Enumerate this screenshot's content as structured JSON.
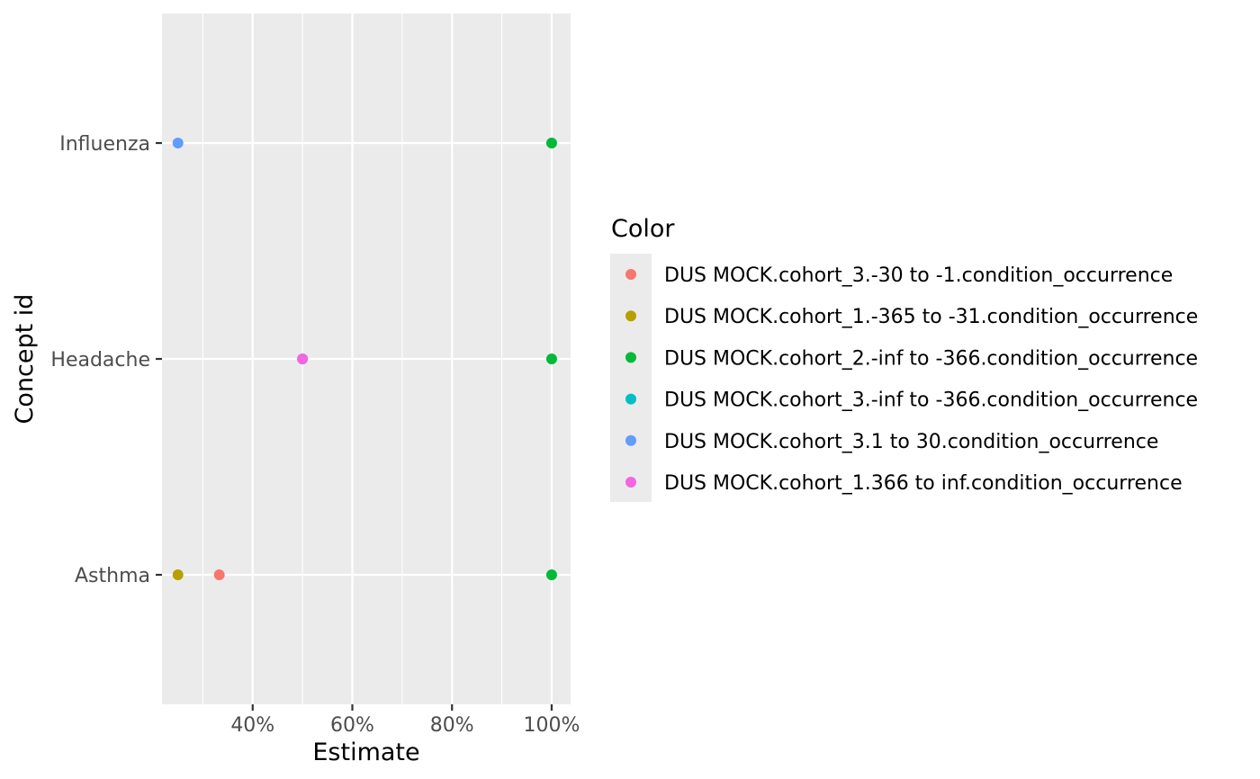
{
  "chart_data": {
    "type": "scatter",
    "xlabel": "Estimate",
    "ylabel": "Concept id",
    "xlim": [
      0.218,
      1.038
    ],
    "x_ticks": [
      0.4,
      0.6,
      0.8,
      1.0
    ],
    "x_tick_labels": [
      "40%",
      "60%",
      "80%",
      "100%"
    ],
    "x_minor_ticks": [
      0.3,
      0.5,
      0.7,
      0.9
    ],
    "categories": [
      "Asthma",
      "Headache",
      "Influenza"
    ],
    "grid": true,
    "legend": {
      "title": "Color",
      "position": "right"
    },
    "series": [
      {
        "name": "DUS MOCK.cohort_3.-30 to -1.condition_occurrence",
        "color": "#F8766D",
        "points": [
          {
            "category": "Asthma",
            "x": 0.333
          }
        ]
      },
      {
        "name": "DUS MOCK.cohort_1.-365 to -31.condition_occurrence",
        "color": "#B79F00",
        "points": [
          {
            "category": "Asthma",
            "x": 0.25
          }
        ]
      },
      {
        "name": "DUS MOCK.cohort_2.-inf to -366.condition_occurrence",
        "color": "#00BA38",
        "points": [
          {
            "category": "Asthma",
            "x": 1.0
          },
          {
            "category": "Headache",
            "x": 1.0
          },
          {
            "category": "Influenza",
            "x": 1.0
          }
        ]
      },
      {
        "name": "DUS MOCK.cohort_3.-inf to -366.condition_occurrence",
        "color": "#00BFC4",
        "points": [
          {
            "category": "Headache",
            "x": 0.5
          }
        ]
      },
      {
        "name": "DUS MOCK.cohort_3.1 to 30.condition_occurrence",
        "color": "#619CFF",
        "points": [
          {
            "category": "Influenza",
            "x": 0.25
          }
        ]
      },
      {
        "name": "DUS MOCK.cohort_1.366 to inf.condition_occurrence",
        "color": "#F564E3",
        "points": [
          {
            "category": "Headache",
            "x": 0.5
          }
        ]
      }
    ]
  }
}
